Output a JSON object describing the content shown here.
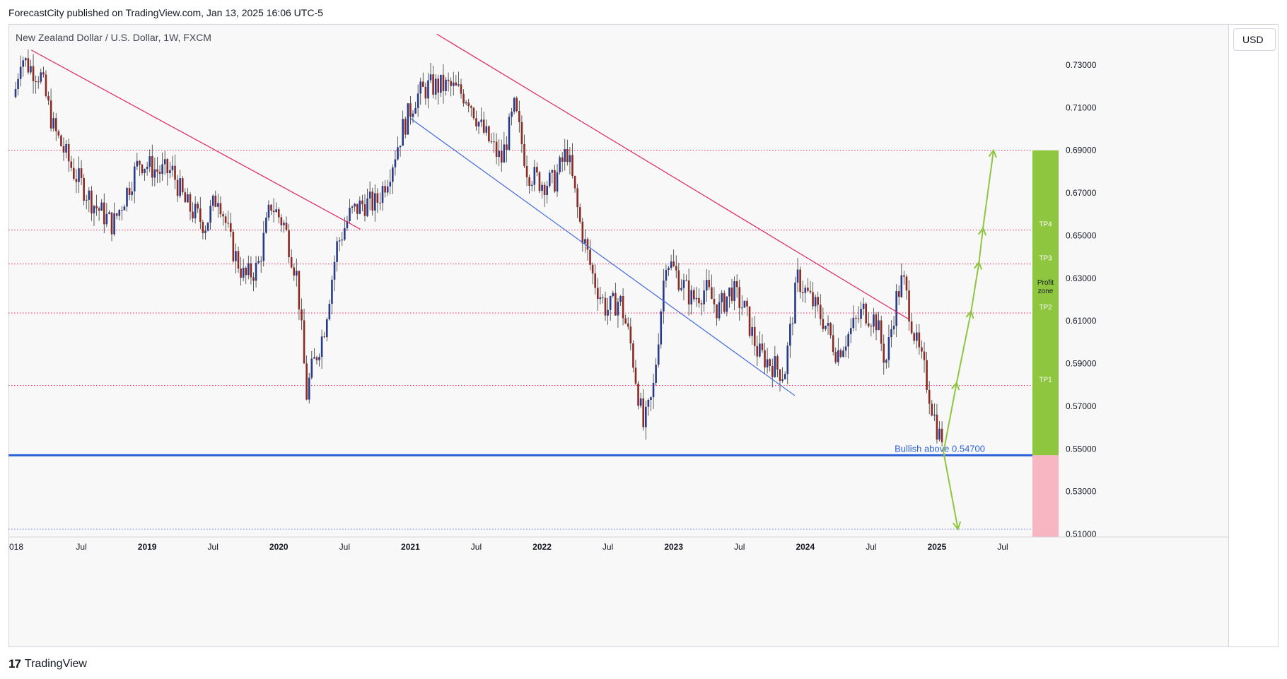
{
  "header": {
    "publisher_line": "ForecastCity published on TradingView.com, Jan 13, 2025 16:06 UTC-5"
  },
  "symbol": {
    "title": "New Zealand Dollar / U.S. Dollar, 1W, FXCM"
  },
  "currency": "USD",
  "footer": {
    "logo_icon": "tradingview-logo-icon",
    "brand": "TradingView"
  },
  "colors": {
    "candle_up": "#2a3a8a",
    "candle_down": "#8a2a22",
    "red_trend": "#e0245e",
    "blue_trend": "#4169e1",
    "support": "#2f5fd6",
    "tp_zone": "#8ec63f",
    "stop_zone": "#f8b6c3",
    "arrow": "#8ec63f",
    "level": "#e0245e"
  },
  "chart_data": {
    "type": "candlestick",
    "title": "New Zealand Dollar / U.S. Dollar, 1W, FXCM",
    "ylim": [
      0.508,
      0.7565
    ],
    "y_ticks": [
      "0.73000",
      "0.71000",
      "0.69000",
      "0.67000",
      "0.65000",
      "0.63000",
      "0.61000",
      "0.59000",
      "0.57000",
      "0.55000",
      "0.53000",
      "0.51000"
    ],
    "x_labels": [
      {
        "label": "018",
        "t": 2018.0
      },
      {
        "label": "Jul",
        "t": 2018.5
      },
      {
        "label": "2019",
        "t": 2019.0
      },
      {
        "label": "Jul",
        "t": 2019.5
      },
      {
        "label": "2020",
        "t": 2020.0
      },
      {
        "label": "Jul",
        "t": 2020.5
      },
      {
        "label": "2021",
        "t": 2021.0
      },
      {
        "label": "Jul",
        "t": 2021.5
      },
      {
        "label": "2022",
        "t": 2022.0
      },
      {
        "label": "Jul",
        "t": 2022.5
      },
      {
        "label": "2023",
        "t": 2023.0
      },
      {
        "label": "Jul",
        "t": 2023.5
      },
      {
        "label": "2024",
        "t": 2024.0
      },
      {
        "label": "Jul",
        "t": 2024.5
      },
      {
        "label": "2025",
        "t": 2025.0
      },
      {
        "label": "Jul",
        "t": 2025.5
      }
    ],
    "bold_years": [
      "2019",
      "2020",
      "2021",
      "2022",
      "2023",
      "2024",
      "2025"
    ],
    "price_path": [
      [
        2018.0,
        0.715
      ],
      [
        2018.05,
        0.735
      ],
      [
        2018.1,
        0.73
      ],
      [
        2018.2,
        0.725
      ],
      [
        2018.3,
        0.7
      ],
      [
        2018.45,
        0.68
      ],
      [
        2018.6,
        0.665
      ],
      [
        2018.75,
        0.655
      ],
      [
        2018.85,
        0.67
      ],
      [
        2018.95,
        0.685
      ],
      [
        2019.1,
        0.68
      ],
      [
        2019.2,
        0.68
      ],
      [
        2019.3,
        0.665
      ],
      [
        2019.45,
        0.655
      ],
      [
        2019.55,
        0.67
      ],
      [
        2019.65,
        0.645
      ],
      [
        2019.75,
        0.63
      ],
      [
        2019.85,
        0.635
      ],
      [
        2019.95,
        0.665
      ],
      [
        2020.05,
        0.655
      ],
      [
        2020.15,
        0.63
      ],
      [
        2020.22,
        0.575
      ],
      [
        2020.25,
        0.585
      ],
      [
        2020.35,
        0.605
      ],
      [
        2020.45,
        0.645
      ],
      [
        2020.55,
        0.66
      ],
      [
        2020.65,
        0.665
      ],
      [
        2020.75,
        0.665
      ],
      [
        2020.85,
        0.68
      ],
      [
        2020.95,
        0.7
      ],
      [
        2021.05,
        0.715
      ],
      [
        2021.15,
        0.72
      ],
      [
        2021.3,
        0.72
      ],
      [
        2021.45,
        0.715
      ],
      [
        2021.55,
        0.7
      ],
      [
        2021.7,
        0.685
      ],
      [
        2021.8,
        0.71
      ],
      [
        2021.9,
        0.68
      ],
      [
        2022.0,
        0.675
      ],
      [
        2022.1,
        0.675
      ],
      [
        2022.2,
        0.69
      ],
      [
        2022.3,
        0.655
      ],
      [
        2022.4,
        0.63
      ],
      [
        2022.5,
        0.615
      ],
      [
        2022.6,
        0.62
      ],
      [
        2022.68,
        0.6
      ],
      [
        2022.78,
        0.56
      ],
      [
        2022.85,
        0.575
      ],
      [
        2022.95,
        0.64
      ],
      [
        2023.05,
        0.63
      ],
      [
        2023.15,
        0.62
      ],
      [
        2023.25,
        0.625
      ],
      [
        2023.35,
        0.615
      ],
      [
        2023.45,
        0.625
      ],
      [
        2023.55,
        0.615
      ],
      [
        2023.65,
        0.595
      ],
      [
        2023.75,
        0.59
      ],
      [
        2023.85,
        0.585
      ],
      [
        2023.95,
        0.63
      ],
      [
        2024.05,
        0.62
      ],
      [
        2024.15,
        0.61
      ],
      [
        2024.25,
        0.595
      ],
      [
        2024.35,
        0.605
      ],
      [
        2024.45,
        0.615
      ],
      [
        2024.55,
        0.61
      ],
      [
        2024.62,
        0.59
      ],
      [
        2024.7,
        0.62
      ],
      [
        2024.75,
        0.63
      ],
      [
        2024.85,
        0.6
      ],
      [
        2024.92,
        0.585
      ],
      [
        2025.0,
        0.562
      ],
      [
        2025.03,
        0.556
      ]
    ],
    "trendlines": [
      {
        "name": "red-trendline-1",
        "color": "red",
        "from": [
          2018.12,
          0.737
        ],
        "to": [
          2020.62,
          0.653
        ]
      },
      {
        "name": "red-trendline-2",
        "color": "red",
        "from": [
          2021.2,
          0.7445
        ],
        "to": [
          2024.78,
          0.611
        ]
      },
      {
        "name": "blue-trendline",
        "color": "blue",
        "from": [
          2021.0,
          0.705
        ],
        "to": [
          2023.92,
          0.575
        ]
      }
    ],
    "levels": [
      {
        "name": "level-0.690",
        "value": 0.69
      },
      {
        "name": "level-tp4",
        "value": 0.6526
      },
      {
        "name": "level-tp3",
        "value": 0.6367
      },
      {
        "name": "level-tp2",
        "value": 0.6137
      },
      {
        "name": "level-tp1",
        "value": 0.5797
      },
      {
        "name": "level-bottom",
        "value": 0.5123
      }
    ],
    "support": {
      "value": 0.547,
      "label": "Bullish above 0.54700"
    },
    "zones": [
      {
        "name": "profit-zone",
        "from": 0.547,
        "to": 0.69,
        "label": "Profit zone"
      },
      {
        "name": "loss-zone",
        "from": 0.508,
        "to": 0.547
      }
    ],
    "tp_labels": [
      {
        "label": "TP4",
        "value": 0.6526
      },
      {
        "label": "TP3",
        "value": 0.6367
      },
      {
        "label": "TP2",
        "value": 0.6137
      },
      {
        "label": "TP1",
        "value": 0.5797
      }
    ],
    "projection": {
      "up_path": [
        [
          2025.05,
          0.5485
        ],
        [
          2025.15,
          0.581
        ],
        [
          2025.26,
          0.6145
        ],
        [
          2025.32,
          0.6375
        ],
        [
          2025.35,
          0.6535
        ],
        [
          2025.43,
          0.69
        ]
      ],
      "down_path": [
        [
          2025.05,
          0.5485
        ],
        [
          2025.16,
          0.5124
        ]
      ]
    }
  }
}
